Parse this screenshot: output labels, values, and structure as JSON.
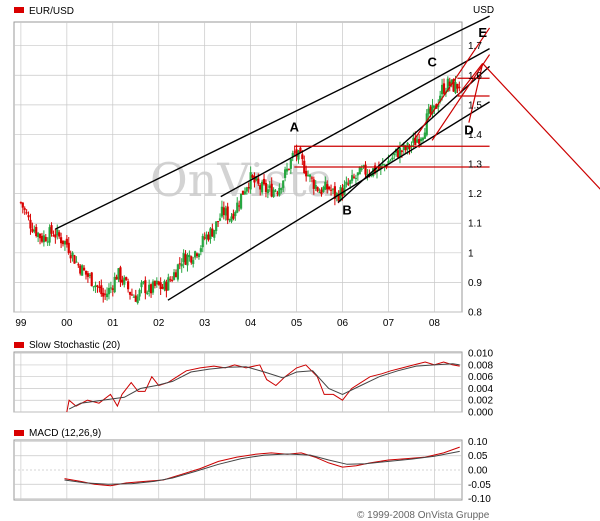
{
  "watermark": "OnVista.",
  "copyright": "© 1999-2008 OnVista Gruppe",
  "panels": {
    "main": {
      "title": "EUR/USD",
      "currency": "USD"
    },
    "stoch": {
      "title": "Slow Stochastic (20)"
    },
    "macd": {
      "title": "MACD (12,26,9)"
    }
  },
  "colors": {
    "up": "#27a641",
    "down": "#d90000",
    "channel": "#000000",
    "red": "#cc0000",
    "grid": "#c8c8c8",
    "stoch_line": "#cc0000",
    "signal_line": "#444444"
  },
  "chart_data": [
    {
      "type": "candlestick",
      "title": "EUR/USD",
      "ylabel": "USD",
      "x_ticks": [
        "99",
        "00",
        "01",
        "02",
        "03",
        "04",
        "05",
        "06",
        "07",
        "08"
      ],
      "y_ticks": [
        0.8,
        0.9,
        1.0,
        1.1,
        1.2,
        1.3,
        1.4,
        1.5,
        1.6,
        1.7
      ],
      "ylim": [
        0.8,
        1.78
      ],
      "grid": true,
      "close_path": [
        [
          1999.0,
          1.17
        ],
        [
          1999.2,
          1.1
        ],
        [
          1999.45,
          1.05
        ],
        [
          1999.7,
          1.07
        ],
        [
          1999.85,
          1.05
        ],
        [
          2000.0,
          1.03
        ],
        [
          2000.2,
          0.97
        ],
        [
          2000.4,
          0.93
        ],
        [
          2000.6,
          0.9
        ],
        [
          2000.8,
          0.85
        ],
        [
          2000.95,
          0.88
        ],
        [
          2001.1,
          0.93
        ],
        [
          2001.25,
          0.9
        ],
        [
          2001.4,
          0.86
        ],
        [
          2001.55,
          0.85
        ],
        [
          2001.65,
          0.89
        ],
        [
          2001.8,
          0.87
        ],
        [
          2001.95,
          0.89
        ],
        [
          2002.1,
          0.88
        ],
        [
          2002.3,
          0.92
        ],
        [
          2002.5,
          0.98
        ],
        [
          2002.7,
          0.99
        ],
        [
          2002.9,
          1.02
        ],
        [
          2003.0,
          1.05
        ],
        [
          2003.2,
          1.08
        ],
        [
          2003.4,
          1.14
        ],
        [
          2003.55,
          1.12
        ],
        [
          2003.7,
          1.16
        ],
        [
          2003.9,
          1.23
        ],
        [
          2004.0,
          1.25
        ],
        [
          2004.2,
          1.22
        ],
        [
          2004.4,
          1.21
        ],
        [
          2004.6,
          1.22
        ],
        [
          2004.8,
          1.28
        ],
        [
          2004.95,
          1.34
        ],
        [
          2005.1,
          1.31
        ],
        [
          2005.3,
          1.25
        ],
        [
          2005.5,
          1.21
        ],
        [
          2005.7,
          1.22
        ],
        [
          2005.85,
          1.19
        ],
        [
          2006.0,
          1.21
        ],
        [
          2006.2,
          1.24
        ],
        [
          2006.4,
          1.27
        ],
        [
          2006.6,
          1.28
        ],
        [
          2006.8,
          1.28
        ],
        [
          2007.0,
          1.31
        ],
        [
          2007.2,
          1.34
        ],
        [
          2007.4,
          1.35
        ],
        [
          2007.6,
          1.38
        ],
        [
          2007.75,
          1.41
        ],
        [
          2007.85,
          1.46
        ],
        [
          2008.0,
          1.48
        ],
        [
          2008.15,
          1.55
        ],
        [
          2008.3,
          1.57
        ],
        [
          2008.45,
          1.56
        ],
        [
          2008.55,
          1.57
        ]
      ],
      "annotations": [
        {
          "label": "A",
          "x": 2004.95,
          "y": 1.41
        },
        {
          "label": "B",
          "x": 2006.1,
          "y": 1.13
        },
        {
          "label": "C",
          "x": 2007.95,
          "y": 1.63
        },
        {
          "label": "D",
          "x": 2008.75,
          "y": 1.4
        },
        {
          "label": "E",
          "x": 2009.05,
          "y": 1.73
        }
      ],
      "trendlines": [
        {
          "color": "black",
          "from": [
            1999.75,
            1.08
          ],
          "to": [
            2009.2,
            1.8
          ]
        },
        {
          "color": "black",
          "from": [
            2003.35,
            1.19
          ],
          "to": [
            2009.2,
            1.69
          ]
        },
        {
          "color": "black",
          "from": [
            2002.2,
            0.84
          ],
          "to": [
            2009.2,
            1.51
          ]
        },
        {
          "color": "black",
          "from": [
            2005.9,
            1.17
          ],
          "to": [
            2009.2,
            1.63
          ]
        },
        {
          "color": "red",
          "from": [
            2004.95,
            1.36
          ],
          "to": [
            2009.2,
            1.36
          ]
        },
        {
          "color": "red",
          "from": [
            2004.95,
            1.29
          ],
          "to": [
            2009.2,
            1.29
          ]
        },
        {
          "color": "red",
          "from": [
            2008.5,
            1.59
          ],
          "to": [
            2009.2,
            1.59
          ]
        },
        {
          "color": "red",
          "from": [
            2008.5,
            1.53
          ],
          "to": [
            2009.2,
            1.53
          ]
        },
        {
          "color": "red",
          "from": [
            2007.55,
            1.38
          ],
          "to": [
            2009.2,
            1.76
          ]
        },
        {
          "color": "red",
          "from": [
            2007.95,
            1.38
          ],
          "to": [
            2009.2,
            1.67
          ]
        },
        {
          "color": "red",
          "from": [
            2008.5,
            1.53
          ],
          "to": [
            2009.05,
            1.64
          ]
        },
        {
          "color": "red",
          "from": [
            2008.75,
            1.44
          ],
          "to": [
            2009.05,
            1.64
          ]
        },
        {
          "color": "red",
          "from": [
            2009.05,
            1.64
          ],
          "to": [
            2011.7,
            1.2
          ]
        }
      ]
    },
    {
      "type": "line",
      "title": "Slow Stochastic (20)",
      "y_ticks": [
        0.0,
        0.002,
        0.004,
        0.006,
        0.008,
        0.01
      ],
      "y_tick_labels": [
        "0.000",
        "0.002",
        "0.004",
        "0.006",
        "0.008",
        "0.010"
      ],
      "ylim": [
        0,
        0.0102
      ],
      "series": [
        {
          "values": [
            [
              2000.0,
              0.0
            ],
            [
              2000.05,
              0.002
            ],
            [
              2000.2,
              0.001
            ],
            [
              2000.45,
              0.002
            ],
            [
              2000.7,
              0.0015
            ],
            [
              2000.95,
              0.003
            ],
            [
              2001.1,
              0.001
            ],
            [
              2001.2,
              0.003
            ],
            [
              2001.4,
              0.005
            ],
            [
              2001.55,
              0.0035
            ],
            [
              2001.7,
              0.0035
            ],
            [
              2001.85,
              0.006
            ],
            [
              2002.0,
              0.0045
            ],
            [
              2002.2,
              0.005
            ],
            [
              2002.4,
              0.006
            ],
            [
              2002.6,
              0.007
            ],
            [
              2002.9,
              0.0075
            ],
            [
              2003.2,
              0.0078
            ],
            [
              2003.45,
              0.0075
            ],
            [
              2003.65,
              0.008
            ],
            [
              2003.9,
              0.0075
            ],
            [
              2004.2,
              0.008
            ],
            [
              2004.35,
              0.0055
            ],
            [
              2004.55,
              0.0045
            ],
            [
              2004.75,
              0.006
            ],
            [
              2005.0,
              0.0075
            ],
            [
              2005.2,
              0.008
            ],
            [
              2005.45,
              0.006
            ],
            [
              2005.6,
              0.003
            ],
            [
              2005.8,
              0.003
            ],
            [
              2006.0,
              0.002
            ],
            [
              2006.2,
              0.004
            ],
            [
              2006.4,
              0.005
            ],
            [
              2006.6,
              0.006
            ],
            [
              2006.85,
              0.0065
            ],
            [
              2007.05,
              0.007
            ],
            [
              2007.3,
              0.0075
            ],
            [
              2007.55,
              0.008
            ],
            [
              2007.8,
              0.0085
            ],
            [
              2008.0,
              0.008
            ],
            [
              2008.2,
              0.0085
            ],
            [
              2008.4,
              0.008
            ],
            [
              2008.55,
              0.0078
            ]
          ]
        },
        {
          "values": [
            [
              2000.05,
              0.0005
            ],
            [
              2000.3,
              0.0015
            ],
            [
              2000.6,
              0.0018
            ],
            [
              2000.95,
              0.0022
            ],
            [
              2001.25,
              0.0025
            ],
            [
              2001.6,
              0.004
            ],
            [
              2001.95,
              0.0045
            ],
            [
              2002.3,
              0.0052
            ],
            [
              2002.7,
              0.0068
            ],
            [
              2003.1,
              0.0073
            ],
            [
              2003.5,
              0.0076
            ],
            [
              2003.9,
              0.0077
            ],
            [
              2004.3,
              0.0068
            ],
            [
              2004.7,
              0.0058
            ],
            [
              2005.0,
              0.0068
            ],
            [
              2005.35,
              0.007
            ],
            [
              2005.7,
              0.004
            ],
            [
              2006.0,
              0.003
            ],
            [
              2006.4,
              0.0045
            ],
            [
              2006.8,
              0.006
            ],
            [
              2007.2,
              0.007
            ],
            [
              2007.6,
              0.0078
            ],
            [
              2008.0,
              0.008
            ],
            [
              2008.4,
              0.0082
            ],
            [
              2008.55,
              0.008
            ]
          ]
        }
      ]
    },
    {
      "type": "line",
      "title": "MACD (12,26,9)",
      "y_ticks": [
        -0.1,
        -0.05,
        0.0,
        0.05,
        0.1
      ],
      "y_tick_labels": [
        "-0.10",
        "-0.05",
        "0.00",
        "0.05",
        "0.10"
      ],
      "ylim": [
        -0.105,
        0.105
      ],
      "series": [
        {
          "values": [
            [
              1999.95,
              -0.03
            ],
            [
              2000.3,
              -0.04
            ],
            [
              2000.6,
              -0.05
            ],
            [
              2000.95,
              -0.055
            ],
            [
              2001.3,
              -0.045
            ],
            [
              2001.7,
              -0.04
            ],
            [
              2002.1,
              -0.035
            ],
            [
              2002.5,
              -0.015
            ],
            [
              2002.9,
              0.005
            ],
            [
              2003.3,
              0.03
            ],
            [
              2003.7,
              0.045
            ],
            [
              2004.1,
              0.055
            ],
            [
              2004.45,
              0.06
            ],
            [
              2004.8,
              0.055
            ],
            [
              2005.1,
              0.06
            ],
            [
              2005.4,
              0.045
            ],
            [
              2005.7,
              0.025
            ],
            [
              2006.0,
              0.01
            ],
            [
              2006.3,
              0.015
            ],
            [
              2006.6,
              0.025
            ],
            [
              2007.0,
              0.035
            ],
            [
              2007.4,
              0.04
            ],
            [
              2007.8,
              0.045
            ],
            [
              2008.2,
              0.06
            ],
            [
              2008.55,
              0.08
            ]
          ]
        },
        {
          "values": [
            [
              1999.95,
              -0.035
            ],
            [
              2000.4,
              -0.045
            ],
            [
              2000.9,
              -0.05
            ],
            [
              2001.4,
              -0.048
            ],
            [
              2001.9,
              -0.04
            ],
            [
              2002.3,
              -0.028
            ],
            [
              2002.8,
              -0.005
            ],
            [
              2003.3,
              0.02
            ],
            [
              2003.8,
              0.04
            ],
            [
              2004.3,
              0.052
            ],
            [
              2004.8,
              0.056
            ],
            [
              2005.3,
              0.052
            ],
            [
              2005.7,
              0.035
            ],
            [
              2006.1,
              0.02
            ],
            [
              2006.5,
              0.022
            ],
            [
              2007.0,
              0.03
            ],
            [
              2007.5,
              0.038
            ],
            [
              2008.0,
              0.048
            ],
            [
              2008.55,
              0.065
            ]
          ]
        }
      ]
    }
  ]
}
